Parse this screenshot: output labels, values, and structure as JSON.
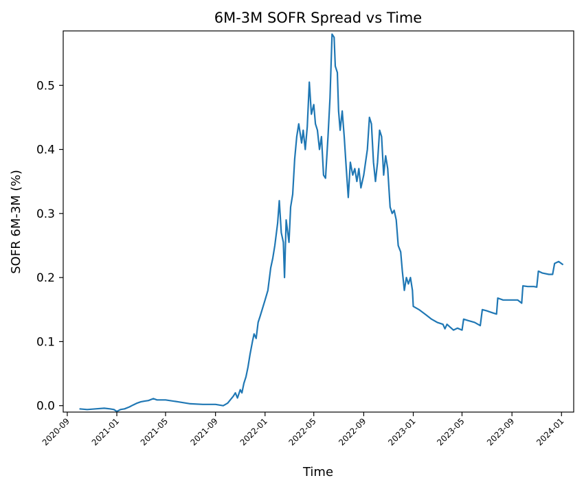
{
  "chart_data": {
    "type": "line",
    "title": "6M-3M SOFR Spread vs Time",
    "xlabel": "Time",
    "ylabel": "SOFR 6M-3M (%)",
    "xlim": [
      "2020-08-22",
      "2024-01-31"
    ],
    "ylim": [
      -0.01,
      0.585
    ],
    "xticks": [
      "2020-09",
      "2021-01",
      "2021-05",
      "2021-09",
      "2022-01",
      "2022-05",
      "2022-09",
      "2023-01",
      "2023-05",
      "2023-09",
      "2024-01"
    ],
    "yticks": [
      "0.0",
      "0.1",
      "0.2",
      "0.3",
      "0.4",
      "0.5"
    ],
    "grid": false,
    "legend": "none",
    "series": [
      {
        "color": "#1f77b4",
        "points": [
          [
            "2020-10-01",
            -0.005
          ],
          [
            "2020-10-20",
            -0.006
          ],
          [
            "2020-11-10",
            -0.005
          ],
          [
            "2020-12-01",
            -0.004
          ],
          [
            "2020-12-15",
            -0.005
          ],
          [
            "2020-12-25",
            -0.006
          ],
          [
            "2021-01-01",
            -0.009
          ],
          [
            "2021-01-10",
            -0.006
          ],
          [
            "2021-01-20",
            -0.005
          ],
          [
            "2021-02-01",
            -0.002
          ],
          [
            "2021-02-10",
            0.001
          ],
          [
            "2021-02-20",
            0.004
          ],
          [
            "2021-03-01",
            0.006
          ],
          [
            "2021-03-10",
            0.007
          ],
          [
            "2021-03-20",
            0.008
          ],
          [
            "2021-04-01",
            0.011
          ],
          [
            "2021-04-10",
            0.009
          ],
          [
            "2021-05-01",
            0.009
          ],
          [
            "2021-06-01",
            0.006
          ],
          [
            "2021-07-01",
            0.003
          ],
          [
            "2021-08-01",
            0.002
          ],
          [
            "2021-09-01",
            0.002
          ],
          [
            "2021-09-20",
            0.0
          ],
          [
            "2021-10-01",
            0.004
          ],
          [
            "2021-10-15",
            0.015
          ],
          [
            "2021-10-20",
            0.02
          ],
          [
            "2021-10-25",
            0.012
          ],
          [
            "2021-11-01",
            0.025
          ],
          [
            "2021-11-05",
            0.02
          ],
          [
            "2021-11-10",
            0.035
          ],
          [
            "2021-11-15",
            0.045
          ],
          [
            "2021-11-20",
            0.06
          ],
          [
            "2021-11-25",
            0.08
          ],
          [
            "2021-12-01",
            0.1
          ],
          [
            "2021-12-05",
            0.112
          ],
          [
            "2021-12-10",
            0.105
          ],
          [
            "2021-12-15",
            0.13
          ],
          [
            "2021-12-20",
            0.14
          ],
          [
            "2022-01-01",
            0.165
          ],
          [
            "2022-01-08",
            0.18
          ],
          [
            "2022-01-15",
            0.215
          ],
          [
            "2022-01-20",
            0.23
          ],
          [
            "2022-01-25",
            0.25
          ],
          [
            "2022-02-01",
            0.285
          ],
          [
            "2022-02-05",
            0.32
          ],
          [
            "2022-02-10",
            0.27
          ],
          [
            "2022-02-15",
            0.255
          ],
          [
            "2022-02-18",
            0.2
          ],
          [
            "2022-02-22",
            0.29
          ],
          [
            "2022-03-01",
            0.255
          ],
          [
            "2022-03-05",
            0.31
          ],
          [
            "2022-03-10",
            0.33
          ],
          [
            "2022-03-15",
            0.385
          ],
          [
            "2022-03-20",
            0.42
          ],
          [
            "2022-03-25",
            0.44
          ],
          [
            "2022-04-01",
            0.41
          ],
          [
            "2022-04-05",
            0.43
          ],
          [
            "2022-04-10",
            0.4
          ],
          [
            "2022-04-15",
            0.435
          ],
          [
            "2022-04-20",
            0.505
          ],
          [
            "2022-04-25",
            0.455
          ],
          [
            "2022-05-01",
            0.47
          ],
          [
            "2022-05-05",
            0.44
          ],
          [
            "2022-05-10",
            0.43
          ],
          [
            "2022-05-15",
            0.4
          ],
          [
            "2022-05-20",
            0.42
          ],
          [
            "2022-05-25",
            0.36
          ],
          [
            "2022-05-30",
            0.355
          ],
          [
            "2022-06-05",
            0.42
          ],
          [
            "2022-06-10",
            0.48
          ],
          [
            "2022-06-15",
            0.58
          ],
          [
            "2022-06-20",
            0.575
          ],
          [
            "2022-06-23",
            0.53
          ],
          [
            "2022-06-28",
            0.52
          ],
          [
            "2022-07-01",
            0.46
          ],
          [
            "2022-07-05",
            0.43
          ],
          [
            "2022-07-10",
            0.46
          ],
          [
            "2022-07-15",
            0.42
          ],
          [
            "2022-07-20",
            0.37
          ],
          [
            "2022-07-25",
            0.325
          ],
          [
            "2022-07-30",
            0.38
          ],
          [
            "2022-08-05",
            0.36
          ],
          [
            "2022-08-10",
            0.37
          ],
          [
            "2022-08-15",
            0.35
          ],
          [
            "2022-08-20",
            0.37
          ],
          [
            "2022-08-25",
            0.34
          ],
          [
            "2022-09-01",
            0.36
          ],
          [
            "2022-09-10",
            0.4
          ],
          [
            "2022-09-15",
            0.45
          ],
          [
            "2022-09-20",
            0.44
          ],
          [
            "2022-09-25",
            0.38
          ],
          [
            "2022-09-30",
            0.35
          ],
          [
            "2022-10-05",
            0.38
          ],
          [
            "2022-10-10",
            0.43
          ],
          [
            "2022-10-15",
            0.42
          ],
          [
            "2022-10-20",
            0.36
          ],
          [
            "2022-10-25",
            0.39
          ],
          [
            "2022-10-30",
            0.37
          ],
          [
            "2022-11-05",
            0.31
          ],
          [
            "2022-11-10",
            0.3
          ],
          [
            "2022-11-15",
            0.305
          ],
          [
            "2022-11-20",
            0.29
          ],
          [
            "2022-11-25",
            0.25
          ],
          [
            "2022-12-01",
            0.24
          ],
          [
            "2022-12-05",
            0.21
          ],
          [
            "2022-12-10",
            0.18
          ],
          [
            "2022-12-15",
            0.2
          ],
          [
            "2022-12-20",
            0.19
          ],
          [
            "2022-12-25",
            0.2
          ],
          [
            "2022-12-30",
            0.18
          ],
          [
            "2023-01-01",
            0.155
          ],
          [
            "2023-01-15",
            0.15
          ],
          [
            "2023-02-01",
            0.142
          ],
          [
            "2023-02-15",
            0.135
          ],
          [
            "2023-03-01",
            0.13
          ],
          [
            "2023-03-15",
            0.127
          ],
          [
            "2023-03-20",
            0.12
          ],
          [
            "2023-03-25",
            0.127
          ],
          [
            "2023-04-01",
            0.123
          ],
          [
            "2023-04-10",
            0.118
          ],
          [
            "2023-04-20",
            0.121
          ],
          [
            "2023-05-01",
            0.118
          ],
          [
            "2023-05-05",
            0.135
          ],
          [
            "2023-05-15",
            0.133
          ],
          [
            "2023-06-01",
            0.13
          ],
          [
            "2023-06-15",
            0.125
          ],
          [
            "2023-06-20",
            0.15
          ],
          [
            "2023-07-01",
            0.148
          ],
          [
            "2023-07-15",
            0.145
          ],
          [
            "2023-07-25",
            0.143
          ],
          [
            "2023-07-28",
            0.168
          ],
          [
            "2023-08-10",
            0.165
          ],
          [
            "2023-09-01",
            0.165
          ],
          [
            "2023-09-15",
            0.165
          ],
          [
            "2023-09-25",
            0.16
          ],
          [
            "2023-09-28",
            0.187
          ],
          [
            "2023-10-10",
            0.186
          ],
          [
            "2023-10-25",
            0.186
          ],
          [
            "2023-11-01",
            0.185
          ],
          [
            "2023-11-05",
            0.21
          ],
          [
            "2023-11-15",
            0.207
          ],
          [
            "2023-12-01",
            0.205
          ],
          [
            "2023-12-10",
            0.205
          ],
          [
            "2023-12-15",
            0.222
          ],
          [
            "2023-12-25",
            0.225
          ],
          [
            "2024-01-05",
            0.22
          ]
        ]
      }
    ]
  }
}
